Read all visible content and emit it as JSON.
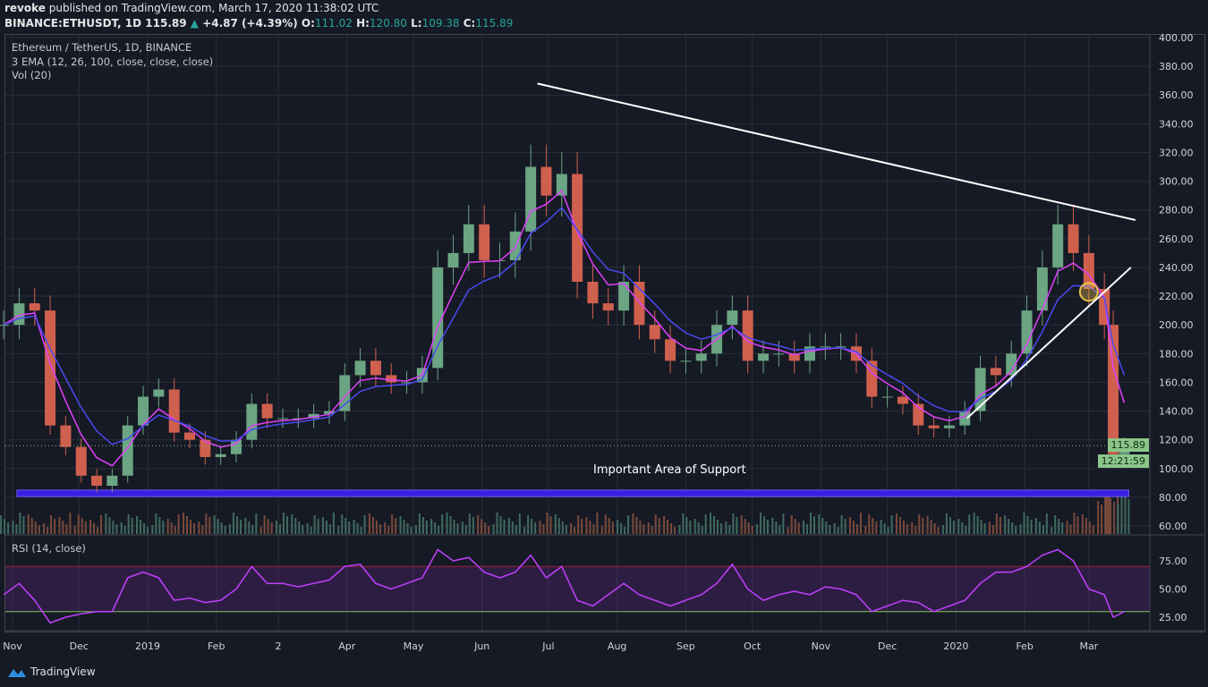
{
  "header": {
    "publisher": "revoke",
    "published_text": "published on TradingView.com, March 17, 2020 11:38:02 UTC",
    "symbol": "BINANCE:ETHUSDT, 1D",
    "last": "115.89",
    "change": "+4.87 (+4.39%)",
    "o_label": "O:",
    "o": "111.02",
    "h_label": "H:",
    "h": "120.80",
    "l_label": "L:",
    "l": "109.38",
    "c_label": "C:",
    "c": "115.89"
  },
  "legend": {
    "title": "Ethereum / TetherUS, 1D, BINANCE",
    "ema": "3 EMA (12, 26, 100, close, close, close)",
    "vol": "Vol (20)",
    "rsi": "RSI (14, close)"
  },
  "price_tag": "115.89",
  "countdown_tag": "12:21:59",
  "annotation": "Important Area of Support",
  "footer": {
    "brand": "TradingView"
  },
  "colors": {
    "background": "#161a25",
    "up": "#6ba583",
    "down": "#d0604e",
    "ema_fast": "#e040fb",
    "ema_slow": "#4a4af0",
    "support_zone": "#3a1ee0",
    "rsi": "#c040ff",
    "trendline": "#ffffff",
    "marker": "#e8c14a"
  },
  "chart_data": {
    "type": "candlestick",
    "price_ticks": [
      "400.00",
      "380.00",
      "360.00",
      "340.00",
      "320.00",
      "300.00",
      "280.00",
      "260.00",
      "240.00",
      "220.00",
      "200.00",
      "180.00",
      "160.00",
      "140.00",
      "120.00",
      "100.00",
      "80.00",
      "60.00"
    ],
    "rsi_ticks": [
      "75.00",
      "50.00",
      "25.00"
    ],
    "x_ticks": [
      {
        "label": "Nov",
        "date": "2018-11-01"
      },
      {
        "label": "Dec",
        "date": "2018-12-01"
      },
      {
        "label": "2019",
        "date": "2019-01-01"
      },
      {
        "label": "Feb",
        "date": "2019-02-01"
      },
      {
        "label": "2",
        "date": "2019-03-01"
      },
      {
        "label": "Apr",
        "date": "2019-04-01"
      },
      {
        "label": "May",
        "date": "2019-05-01"
      },
      {
        "label": "Jun",
        "date": "2019-06-01"
      },
      {
        "label": "Jul",
        "date": "2019-07-01"
      },
      {
        "label": "Aug",
        "date": "2019-08-01"
      },
      {
        "label": "Sep",
        "date": "2019-09-01"
      },
      {
        "label": "Oct",
        "date": "2019-10-01"
      },
      {
        "label": "Nov",
        "date": "2019-11-01"
      },
      {
        "label": "Dec",
        "date": "2019-12-01"
      },
      {
        "label": "2020",
        "date": "2020-01-01"
      },
      {
        "label": "Feb",
        "date": "2020-02-01"
      },
      {
        "label": "Mar",
        "date": "2020-03-01"
      }
    ],
    "ylim": [
      60,
      400
    ],
    "rsi_levels": [
      30,
      70
    ],
    "dates": [
      "2018-10-28",
      "2018-11-04",
      "2018-11-11",
      "2018-11-18",
      "2018-11-25",
      "2018-12-02",
      "2018-12-09",
      "2018-12-16",
      "2018-12-23",
      "2018-12-30",
      "2019-01-06",
      "2019-01-13",
      "2019-01-20",
      "2019-01-27",
      "2019-02-03",
      "2019-02-10",
      "2019-02-17",
      "2019-02-24",
      "2019-03-03",
      "2019-03-10",
      "2019-03-17",
      "2019-03-24",
      "2019-03-31",
      "2019-04-07",
      "2019-04-14",
      "2019-04-21",
      "2019-04-28",
      "2019-05-05",
      "2019-05-12",
      "2019-05-19",
      "2019-05-26",
      "2019-06-02",
      "2019-06-09",
      "2019-06-16",
      "2019-06-23",
      "2019-06-30",
      "2019-07-07",
      "2019-07-14",
      "2019-07-21",
      "2019-07-28",
      "2019-08-04",
      "2019-08-11",
      "2019-08-18",
      "2019-08-25",
      "2019-09-01",
      "2019-09-08",
      "2019-09-15",
      "2019-09-22",
      "2019-09-29",
      "2019-10-06",
      "2019-10-13",
      "2019-10-20",
      "2019-10-27",
      "2019-11-03",
      "2019-11-10",
      "2019-11-17",
      "2019-11-24",
      "2019-12-01",
      "2019-12-08",
      "2019-12-15",
      "2019-12-22",
      "2019-12-29",
      "2020-01-05",
      "2020-01-12",
      "2020-01-19",
      "2020-01-26",
      "2020-02-02",
      "2020-02-09",
      "2020-02-16",
      "2020-02-23",
      "2020-03-01",
      "2020-03-08",
      "2020-03-12",
      "2020-03-17"
    ],
    "close": [
      200,
      215,
      210,
      130,
      115,
      95,
      88,
      95,
      130,
      150,
      155,
      125,
      120,
      108,
      110,
      120,
      145,
      135,
      135,
      135,
      138,
      140,
      165,
      175,
      165,
      160,
      160,
      170,
      240,
      250,
      270,
      245,
      245,
      265,
      310,
      290,
      305,
      230,
      215,
      210,
      230,
      200,
      190,
      175,
      175,
      180,
      200,
      210,
      175,
      180,
      180,
      175,
      185,
      185,
      185,
      175,
      150,
      150,
      145,
      130,
      128,
      130,
      140,
      170,
      165,
      180,
      210,
      240,
      270,
      250,
      225,
      200,
      110,
      115.89
    ],
    "rsi": [
      45,
      55,
      40,
      20,
      25,
      28,
      30,
      30,
      60,
      65,
      60,
      40,
      42,
      38,
      40,
      50,
      70,
      55,
      55,
      52,
      55,
      58,
      70,
      72,
      55,
      50,
      55,
      60,
      85,
      75,
      78,
      65,
      60,
      65,
      80,
      60,
      70,
      40,
      35,
      45,
      55,
      45,
      40,
      35,
      40,
      45,
      55,
      72,
      50,
      40,
      45,
      48,
      45,
      52,
      50,
      45,
      30,
      35,
      40,
      38,
      30,
      35,
      40,
      55,
      65,
      65,
      70,
      80,
      85,
      75,
      50,
      45,
      25,
      30
    ],
    "trendlines": [
      {
        "from": [
          "2019-06-26",
          368
        ],
        "to": [
          "2020-03-22",
          273
        ]
      },
      {
        "from": [
          "2020-01-06",
          135
        ],
        "to": [
          "2020-03-20",
          240
        ]
      }
    ],
    "support_zone": [
      80.5,
      85
    ],
    "marker": {
      "date": "2020-03-01",
      "price": 223
    }
  }
}
